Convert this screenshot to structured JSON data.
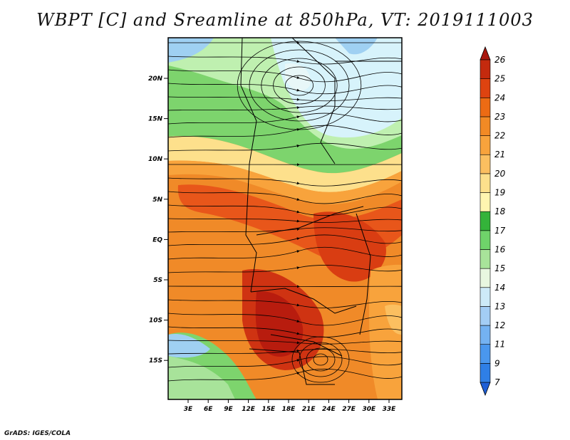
{
  "title": "WBPT [C] and Sreamline at 850hPa, VT: 2019111003",
  "credit": "GrADS: IGES/COLA",
  "map": {
    "lat_labels": [
      "20N",
      "15N",
      "10N",
      "5N",
      "EQ",
      "5S",
      "10S",
      "15S"
    ],
    "lon_labels": [
      "3E",
      "6E",
      "9E",
      "12E",
      "15E",
      "18E",
      "21E",
      "24E",
      "27E",
      "30E",
      "33E"
    ]
  },
  "colorbar": {
    "levels": [
      "7",
      "9",
      "11",
      "12",
      "13",
      "14",
      "15",
      "16",
      "17",
      "18",
      "19",
      "20",
      "21",
      "22",
      "23",
      "24",
      "25",
      "26"
    ],
    "colors": [
      "#1e5fd6",
      "#2f7fe6",
      "#4a97ee",
      "#74b2f2",
      "#a3cdf5",
      "#cdeaf8",
      "#e8f7e0",
      "#a8e39a",
      "#6fd36a",
      "#34b33a",
      "#fff5b0",
      "#fde08c",
      "#fbbf60",
      "#f8a33c",
      "#f28a25",
      "#ec6b14",
      "#de4310",
      "#c42a0e",
      "#a8160d"
    ]
  }
}
